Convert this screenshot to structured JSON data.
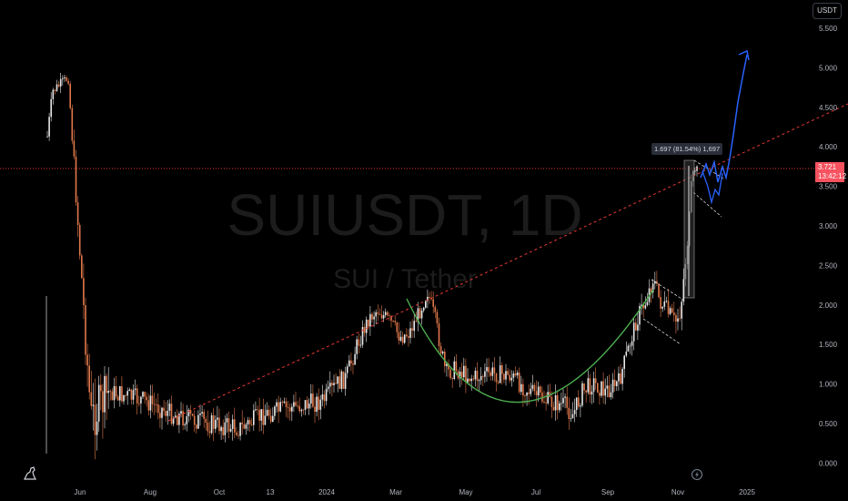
{
  "header": {
    "currency_label": "USDT"
  },
  "watermark": {
    "symbol": "SUIUSDT, 1D",
    "description": "SUI / Tether"
  },
  "price_axis": {
    "ticks": [
      "5.500",
      "5.000",
      "4.500",
      "4.000",
      "3.500",
      "3.000",
      "2.500",
      "2.000",
      "1.500",
      "1.000",
      "0.500",
      "0.000"
    ]
  },
  "time_axis": {
    "ticks": [
      "Jun",
      "Aug",
      "Oct",
      "13",
      "2024",
      "Mar",
      "May",
      "Jul",
      "Sep",
      "Nov",
      "2025"
    ]
  },
  "last_price": {
    "value": "3.721",
    "countdown": "13:42:12"
  },
  "measure": {
    "text": "1.697 (81.54%) 1,697"
  },
  "icons": {
    "logo": "tradingview-dino-icon",
    "event": "lightning-event-icon"
  },
  "colors": {
    "background": "#000000",
    "up": "#e8e8e8",
    "down": "#e0784a",
    "trendline": "#e53935",
    "cup_curve": "#4caf50",
    "projection": "#2962ff",
    "price_tag": "#f7525f"
  }
}
